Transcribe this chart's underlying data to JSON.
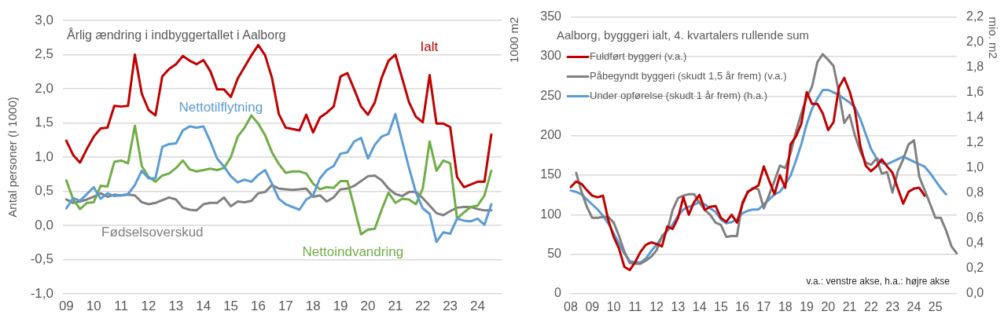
{
  "chart_data": [
    {
      "type": "line",
      "title": "Årlig ændring i indbyggertallet i Aalborg",
      "ylabel": "Antal personer (I 1000)",
      "categories": [
        "09",
        null,
        null,
        null,
        "10",
        null,
        null,
        null,
        "11",
        null,
        null,
        null,
        "12",
        null,
        null,
        null,
        "13",
        null,
        null,
        null,
        "14",
        null,
        null,
        null,
        "15",
        null,
        null,
        null,
        "16",
        null,
        null,
        null,
        "17",
        null,
        null,
        null,
        "18",
        null,
        null,
        null,
        "19",
        null,
        null,
        null,
        "20",
        null,
        null,
        null,
        "21",
        null,
        null,
        null,
        "22",
        null,
        null,
        null,
        "23",
        null,
        null,
        null,
        "24",
        null,
        null,
        null
      ],
      "series": [
        {
          "name": "Ialt",
          "color": "#c00000",
          "values": [
            1.24,
            1.03,
            0.92,
            1.12,
            1.3,
            1.42,
            1.43,
            1.75,
            1.74,
            1.75,
            2.5,
            1.93,
            1.69,
            1.61,
            2.18,
            2.29,
            2.36,
            2.48,
            2.41,
            2.36,
            2.42,
            2.26,
            1.99,
            1.99,
            1.88,
            2.15,
            2.32,
            2.49,
            2.64,
            2.49,
            2.16,
            1.63,
            1.43,
            1.41,
            1.39,
            1.62,
            1.36,
            1.58,
            1.65,
            1.74,
            2.18,
            2.23,
            1.99,
            1.74,
            1.62,
            1.8,
            2.16,
            2.41,
            2.5,
            2.15,
            1.8,
            1.59,
            1.51,
            2.2,
            1.49,
            1.49,
            1.44,
            0.71,
            0.56,
            0.6,
            0.64,
            0.64,
            1.33,
            null
          ]
        },
        {
          "name": "Nettotilflytning",
          "color": "#5b9bd5",
          "values": [
            0.25,
            0.4,
            0.36,
            0.46,
            0.56,
            0.39,
            0.47,
            0.43,
            0.44,
            0.46,
            0.59,
            0.8,
            0.69,
            0.69,
            1.15,
            1.19,
            1.2,
            1.39,
            1.45,
            1.43,
            1.45,
            1.23,
            0.98,
            0.86,
            0.72,
            0.63,
            0.67,
            0.64,
            0.74,
            0.81,
            0.61,
            0.39,
            0.31,
            0.27,
            0.23,
            0.38,
            0.44,
            0.69,
            0.81,
            0.87,
            1.05,
            1.07,
            1.23,
            1.28,
            0.98,
            1.18,
            1.3,
            1.34,
            1.63,
            1.23,
            0.84,
            0.48,
            0.25,
            0.17,
            -0.24,
            -0.1,
            -0.12,
            0.1,
            0.07,
            0.06,
            0.1,
            0.01,
            0.31,
            null
          ]
        },
        {
          "name": "Nettoindvandring",
          "color": "#70ad47",
          "values": [
            0.66,
            0.38,
            0.24,
            0.33,
            0.34,
            0.58,
            0.57,
            0.93,
            0.95,
            0.91,
            1.46,
            0.87,
            0.71,
            0.64,
            0.73,
            0.76,
            0.84,
            0.95,
            0.82,
            0.79,
            0.81,
            0.83,
            0.81,
            0.84,
            1.0,
            1.3,
            1.43,
            1.61,
            1.49,
            1.32,
            1.07,
            0.9,
            0.77,
            0.79,
            0.79,
            0.76,
            0.61,
            0.53,
            0.56,
            0.55,
            0.65,
            0.65,
            0.27,
            -0.13,
            -0.06,
            -0.05,
            0.23,
            0.48,
            0.33,
            0.39,
            0.38,
            0.31,
            0.54,
            1.23,
            0.8,
            0.95,
            0.91,
            0.1,
            0.19,
            0.27,
            0.29,
            0.44,
            0.8,
            null
          ]
        },
        {
          "name": "Fødselsoverskud",
          "color": "#808080",
          "values": [
            0.38,
            0.33,
            0.35,
            0.38,
            0.42,
            0.47,
            0.42,
            0.45,
            0.44,
            0.45,
            0.44,
            0.34,
            0.31,
            0.33,
            0.37,
            0.41,
            0.38,
            0.26,
            0.23,
            0.22,
            0.31,
            0.33,
            0.33,
            0.41,
            0.28,
            0.35,
            0.34,
            0.36,
            0.47,
            0.49,
            0.59,
            0.54,
            0.53,
            0.52,
            0.53,
            0.54,
            0.42,
            0.44,
            0.35,
            0.41,
            0.53,
            0.54,
            0.58,
            0.65,
            0.72,
            0.73,
            0.66,
            0.54,
            0.46,
            0.43,
            0.49,
            0.49,
            0.4,
            0.29,
            0.18,
            0.15,
            0.21,
            0.26,
            0.27,
            0.27,
            0.24,
            0.22,
            0.22,
            null
          ]
        }
      ],
      "ylim": [
        -1,
        3
      ],
      "yticks": [
        {
          "value": -1,
          "label": "-1,0"
        },
        {
          "value": -0.5,
          "label": "-0,5"
        },
        {
          "value": 0,
          "label": "0,0"
        },
        {
          "value": 0.5,
          "label": "0,5"
        },
        {
          "value": 1,
          "label": "1,0"
        },
        {
          "value": 1.5,
          "label": "1,5"
        },
        {
          "value": 2,
          "label": "2,0"
        },
        {
          "value": 2.5,
          "label": "2,5"
        },
        {
          "value": 3,
          "label": "3,0"
        }
      ],
      "grid": "y",
      "legend": false,
      "marker": "none"
    },
    {
      "type": "line",
      "title": "Aalborg, bygggeri ialt, 4. kvartalers rullende sum",
      "ylabel": "1000 m2",
      "y2label": "mio. m2",
      "categories": [
        "08",
        null,
        null,
        null,
        "09",
        null,
        null,
        null,
        "10",
        null,
        null,
        null,
        "11",
        null,
        null,
        null,
        "12",
        null,
        null,
        null,
        "13",
        null,
        null,
        null,
        "14",
        null,
        null,
        null,
        "15",
        null,
        null,
        null,
        "16",
        null,
        null,
        null,
        "17",
        null,
        null,
        null,
        "18",
        null,
        null,
        null,
        "19",
        null,
        null,
        null,
        "20",
        null,
        null,
        null,
        "21",
        null,
        null,
        null,
        "22",
        null,
        null,
        null,
        "23",
        null,
        null,
        null,
        "24",
        null,
        null,
        null,
        "25",
        null,
        null,
        null,
        null
      ],
      "series": [
        {
          "name": "Fuldført byggeri (v.a.)",
          "color": "#c00000",
          "values": [
            135,
            142,
            139,
            131,
            124,
            122,
            124,
            93,
            72,
            57,
            34,
            30,
            40,
            53,
            62,
            65,
            63,
            60,
            85,
            82,
            96,
            122,
            100,
            116,
            125,
            106,
            110,
            111,
            96,
            91,
            100,
            90,
            113,
            129,
            133,
            137,
            161,
            143,
            126,
            150,
            134,
            189,
            199,
            215,
            255,
            240,
            240,
            228,
            207,
            217,
            261,
            273,
            256,
            232,
            187,
            162,
            155,
            161,
            170,
            161,
            153,
            133,
            114,
            129,
            133,
            134,
            124,
            null,
            null,
            null,
            null,
            null,
            null
          ]
        },
        {
          "name": "Påbegyndt byggeri (skudt 1,5 år frem) (v.a.)",
          "color": "#808080",
          "values": [
            null,
            153,
            129,
            110,
            96,
            96,
            97,
            97,
            90,
            73,
            53,
            39,
            38,
            38,
            42,
            47,
            55,
            73,
            80,
            106,
            121,
            124,
            126,
            126,
            115,
            106,
            100,
            90,
            87,
            72,
            73,
            73,
            116,
            128,
            134,
            132,
            108,
            125,
            143,
            162,
            159,
            178,
            205,
            228,
            248,
            262,
            293,
            303,
            296,
            288,
            255,
            216,
            226,
            200,
            180,
            166,
            163,
            171,
            152,
            154,
            128,
            155,
            170,
            189,
            194,
            148,
            131,
            114,
            96,
            96,
            80,
            60,
            51
          ]
        },
        {
          "name": "Under opførelse (skudt 1 år frem) (h.a.)",
          "color": "#5b9bd5",
          "axis": "y2",
          "values": [
            0.82,
            0.81,
            0.79,
            0.75,
            0.71,
            0.67,
            0.62,
            0.56,
            0.48,
            0.4,
            0.32,
            0.26,
            0.25,
            0.25,
            0.28,
            0.34,
            0.39,
            0.45,
            0.5,
            0.55,
            0.62,
            0.67,
            0.69,
            0.71,
            0.73,
            0.71,
            0.68,
            0.65,
            0.59,
            0.56,
            0.57,
            0.59,
            0.64,
            0.66,
            0.67,
            0.67,
            0.71,
            0.75,
            0.79,
            0.81,
            0.87,
            0.94,
            1.06,
            1.19,
            1.35,
            1.47,
            1.55,
            1.62,
            1.62,
            1.6,
            1.58,
            1.55,
            1.52,
            1.48,
            1.39,
            1.27,
            1.15,
            1.08,
            1.04,
            1.03,
            1.05,
            1.07,
            1.09,
            1.07,
            1.05,
            1.03,
            1.01,
            0.96,
            0.9,
            0.84,
            0.79,
            null,
            null
          ]
        }
      ],
      "ylim": [
        0,
        350
      ],
      "yticks": [
        0,
        50,
        100,
        150,
        200,
        250,
        300,
        350
      ],
      "y2lim": [
        0,
        2.2
      ],
      "y2ticks": [
        {
          "value": 0,
          "label": "0,0"
        },
        {
          "value": 0.2,
          "label": "0,2"
        },
        {
          "value": 0.4,
          "label": "0,4"
        },
        {
          "value": 0.6,
          "label": "0,6"
        },
        {
          "value": 0.8,
          "label": "0,8"
        },
        {
          "value": 1,
          "label": "1,0"
        },
        {
          "value": 1.2,
          "label": "1,2"
        },
        {
          "value": 1.4,
          "label": "1,4"
        },
        {
          "value": 1.6,
          "label": "1,6"
        },
        {
          "value": 1.8,
          "label": "1,8"
        },
        {
          "value": 2,
          "label": "2,0"
        },
        {
          "value": 2.2,
          "label": "2,2"
        }
      ],
      "grid": "y",
      "legend": "top left",
      "marker": "none",
      "annotations": [
        "v.a.: venstre akse, h.a.: højre akse"
      ]
    }
  ]
}
